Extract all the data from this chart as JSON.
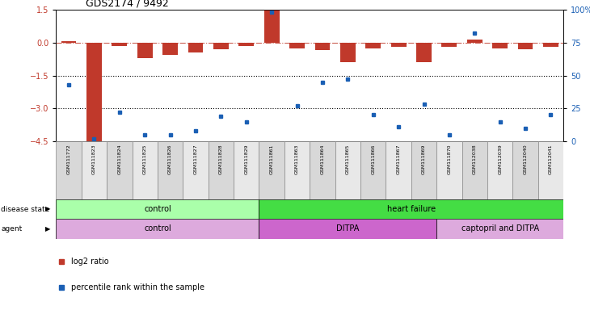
{
  "title": "GDS2174 / 9492",
  "samples": [
    "GSM111772",
    "GSM111823",
    "GSM111824",
    "GSM111825",
    "GSM111826",
    "GSM111827",
    "GSM111828",
    "GSM111829",
    "GSM111861",
    "GSM111863",
    "GSM111864",
    "GSM111865",
    "GSM111866",
    "GSM111867",
    "GSM111869",
    "GSM111870",
    "GSM112038",
    "GSM112039",
    "GSM112040",
    "GSM112041"
  ],
  "log2_ratio": [
    0.05,
    -4.5,
    -0.15,
    -0.7,
    -0.55,
    -0.45,
    -0.3,
    -0.15,
    1.5,
    -0.25,
    -0.35,
    -0.9,
    -0.25,
    -0.2,
    -0.9,
    -0.2,
    0.15,
    -0.25,
    -0.3,
    -0.2
  ],
  "percentile": [
    43,
    2,
    22,
    5,
    5,
    8,
    19,
    15,
    98,
    27,
    45,
    47,
    20,
    11,
    28,
    5,
    82,
    15,
    10,
    20
  ],
  "bar_color": "#c0392b",
  "dot_color": "#1a5fb4",
  "ylim_left": [
    -4.5,
    1.5
  ],
  "ylim_right": [
    0,
    100
  ],
  "yticks_left": [
    1.5,
    0,
    -1.5,
    -3,
    -4.5
  ],
  "yticks_right": [
    0,
    25,
    50,
    75,
    100
  ],
  "hlines": [
    -1.5,
    -3.0
  ],
  "dashed_hline": 0,
  "disease_state": [
    {
      "label": "control",
      "start": 0,
      "end": 8,
      "color": "#aaffaa"
    },
    {
      "label": "heart failure",
      "start": 8,
      "end": 20,
      "color": "#44dd44"
    }
  ],
  "agent": [
    {
      "label": "control",
      "start": 0,
      "end": 8,
      "color": "#ddaadd"
    },
    {
      "label": "DITPA",
      "start": 8,
      "end": 15,
      "color": "#cc66cc"
    },
    {
      "label": "captopril and DITPA",
      "start": 15,
      "end": 20,
      "color": "#ddaadd"
    }
  ],
  "legend_items": [
    {
      "label": "log2 ratio",
      "color": "#c0392b"
    },
    {
      "label": "percentile rank within the sample",
      "color": "#1a5fb4"
    }
  ],
  "background_color": "#ffffff",
  "tick_label_color_left": "#c0392b",
  "tick_label_color_right": "#1a5fb4",
  "sample_cell_color": "#d8d8d8",
  "sample_cell_color2": "#e8e8e8"
}
